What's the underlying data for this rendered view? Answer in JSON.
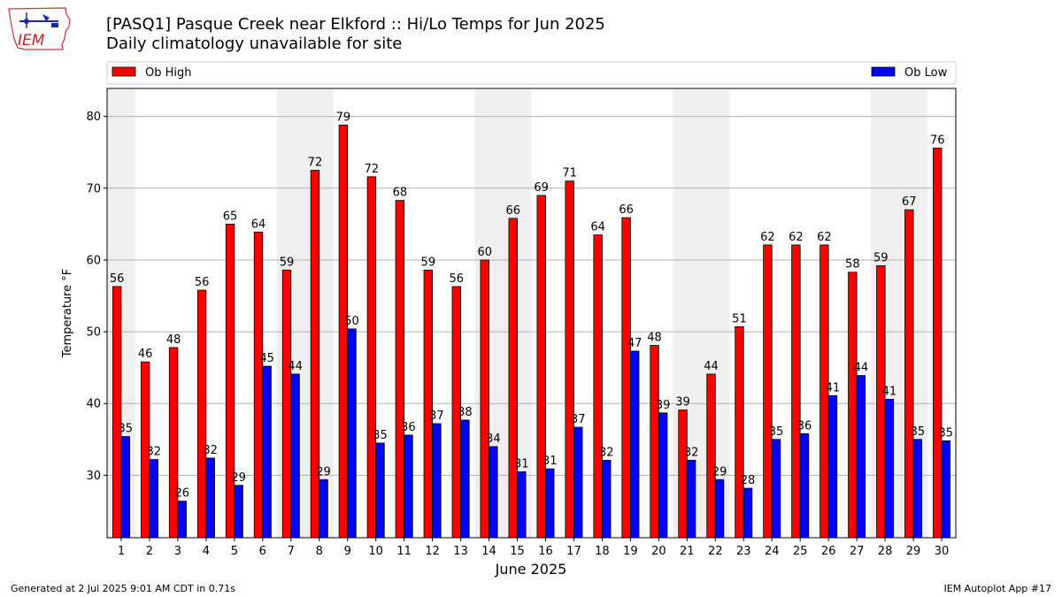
{
  "title_line1": "[PASQ1] Pasque Creek near Elkford :: Hi/Lo Temps for Jun 2025",
  "title_line2": "Daily climatology unavailable for site",
  "logo_text": "IEM",
  "footer_left": "Generated at 2 Jul 2025 9:01 AM CDT in 0.71s",
  "footer_right": "IEM Autoplot App #17",
  "colors": {
    "high": "#ff0000",
    "low": "#0000ff",
    "weekend": "#efefef",
    "grid": "#b0b0b0"
  },
  "chart_data": {
    "type": "bar",
    "xlabel": "June 2025",
    "ylabel": "Temperature °F",
    "ylim": [
      21.3,
      83.9
    ],
    "yticks": [
      30,
      40,
      50,
      60,
      70,
      80
    ],
    "grid": "horizontal",
    "legend_placement": "top",
    "categories": [
      "1",
      "2",
      "3",
      "4",
      "5",
      "6",
      "7",
      "8",
      "9",
      "10",
      "11",
      "12",
      "13",
      "14",
      "15",
      "16",
      "17",
      "18",
      "19",
      "20",
      "21",
      "22",
      "23",
      "24",
      "25",
      "26",
      "27",
      "28",
      "29",
      "30"
    ],
    "shaded_days": [
      1,
      7,
      8,
      14,
      15,
      21,
      22,
      28,
      29
    ],
    "series": [
      {
        "name": "Ob High",
        "color": "#ff0000",
        "values": [
          56.3,
          45.8,
          47.8,
          55.8,
          65.0,
          63.9,
          58.6,
          72.5,
          78.8,
          71.6,
          68.3,
          58.6,
          56.3,
          60.0,
          65.8,
          69.0,
          71.0,
          63.5,
          65.9,
          48.1,
          39.1,
          44.1,
          50.7,
          62.1,
          62.1,
          62.1,
          58.3,
          59.2,
          67.0,
          75.6
        ],
        "labels": [
          "56",
          "46",
          "48",
          "56",
          "65",
          "64",
          "59",
          "72",
          "79",
          "72",
          "68",
          "59",
          "56",
          "60",
          "66",
          "69",
          "71",
          "64",
          "66",
          "48",
          "39",
          "44",
          "51",
          "62",
          "62",
          "62",
          "58",
          "59",
          "67",
          "76"
        ]
      },
      {
        "name": "Ob Low",
        "color": "#0000ff",
        "values": [
          35.4,
          32.2,
          26.4,
          32.4,
          28.6,
          45.2,
          44.1,
          29.4,
          50.4,
          34.5,
          35.6,
          37.2,
          37.7,
          34.0,
          30.5,
          30.9,
          36.7,
          32.1,
          47.3,
          38.7,
          32.1,
          29.4,
          28.2,
          35.0,
          35.8,
          41.1,
          43.9,
          40.6,
          35.0,
          34.8
        ],
        "labels": [
          "35",
          "32",
          "26",
          "32",
          "29",
          "45",
          "44",
          "29",
          "50",
          "35",
          "36",
          "37",
          "38",
          "34",
          "31",
          "31",
          "37",
          "32",
          "47",
          "39",
          "32",
          "29",
          "28",
          "35",
          "36",
          "41",
          "44",
          "41",
          "35",
          "35"
        ]
      }
    ]
  }
}
